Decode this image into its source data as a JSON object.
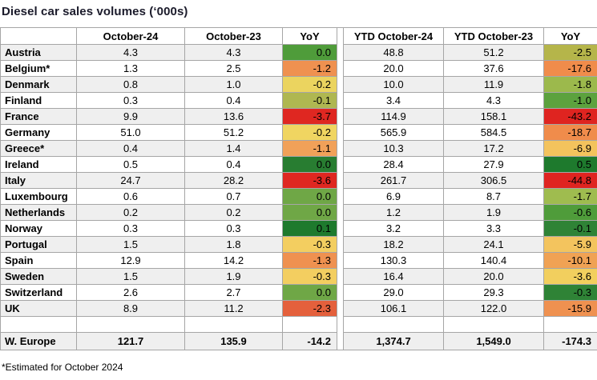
{
  "title": "Diesel car sales volumes (‘000s)",
  "footnote": "*Estimated for October 2024",
  "colors": {
    "border": "#a6a6a6",
    "stripe": "#efefef",
    "title_text": "#1b1b2b"
  },
  "table": {
    "headers": [
      "",
      "October-24",
      "October-23",
      "YoY",
      "YTD October-24",
      "YTD October-23",
      "YoY"
    ],
    "rows": [
      {
        "country": "Austria",
        "oct24": "4.3",
        "oct23": "4.3",
        "yoy": "0.0",
        "yoy_bg": "#4f9c3a",
        "ytd24": "48.8",
        "ytd23": "51.2",
        "ytd_yoy": "-2.5",
        "ytd_yoy_bg": "#b5b54a"
      },
      {
        "country": "Belgium*",
        "oct24": "1.3",
        "oct23": "2.5",
        "yoy": "-1.2",
        "yoy_bg": "#ef9150",
        "ytd24": "20.0",
        "ytd23": "37.6",
        "ytd_yoy": "-17.6",
        "ytd_yoy_bg": "#f08c4b"
      },
      {
        "country": "Denmark",
        "oct24": "0.8",
        "oct23": "1.0",
        "yoy": "-0.2",
        "yoy_bg": "#ebd45f",
        "ytd24": "10.0",
        "ytd23": "11.9",
        "ytd_yoy": "-1.8",
        "ytd_yoy_bg": "#9cb94c"
      },
      {
        "country": "Finland",
        "oct24": "0.3",
        "oct23": "0.4",
        "yoy": "-0.1",
        "yoy_bg": "#afb751",
        "ytd24": "3.4",
        "ytd23": "4.3",
        "ytd_yoy": "-1.0",
        "ytd_yoy_bg": "#5ca23e"
      },
      {
        "country": "France",
        "oct24": "9.9",
        "oct23": "13.6",
        "yoy": "-3.7",
        "yoy_bg": "#df2721",
        "ytd24": "114.9",
        "ytd23": "158.1",
        "ytd_yoy": "-43.2",
        "ytd_yoy_bg": "#df2420"
      },
      {
        "country": "Germany",
        "oct24": "51.0",
        "oct23": "51.2",
        "yoy": "-0.2",
        "yoy_bg": "#f0d561",
        "ytd24": "565.9",
        "ytd23": "584.5",
        "ytd_yoy": "-18.7",
        "ytd_yoy_bg": "#f08c4b"
      },
      {
        "country": "Greece*",
        "oct24": "0.4",
        "oct23": "1.4",
        "yoy": "-1.1",
        "yoy_bg": "#f1a159",
        "ytd24": "10.3",
        "ytd23": "17.2",
        "ytd_yoy": "-6.9",
        "ytd_yoy_bg": "#f3c35d"
      },
      {
        "country": "Ireland",
        "oct24": "0.5",
        "oct23": "0.4",
        "yoy": "0.0",
        "yoy_bg": "#287d31",
        "ytd24": "28.4",
        "ytd23": "27.9",
        "ytd_yoy": "0.5",
        "ytd_yoy_bg": "#1e7a2d"
      },
      {
        "country": "Italy",
        "oct24": "24.7",
        "oct23": "28.2",
        "yoy": "-3.6",
        "yoy_bg": "#df2721",
        "ytd24": "261.7",
        "ytd23": "306.5",
        "ytd_yoy": "-44.8",
        "ytd_yoy_bg": "#df2420"
      },
      {
        "country": "Luxembourg",
        "oct24": "0.6",
        "oct23": "0.7",
        "yoy": "0.0",
        "yoy_bg": "#6fa746",
        "ytd24": "6.9",
        "ytd23": "8.7",
        "ytd_yoy": "-1.7",
        "ytd_yoy_bg": "#9fbc4f"
      },
      {
        "country": "Netherlands",
        "oct24": "0.2",
        "oct23": "0.2",
        "yoy": "0.0",
        "yoy_bg": "#6fa746",
        "ytd24": "1.2",
        "ytd23": "1.9",
        "ytd_yoy": "-0.6",
        "ytd_yoy_bg": "#4f9c3a"
      },
      {
        "country": "Norway",
        "oct24": "0.3",
        "oct23": "0.3",
        "yoy": "0.1",
        "yoy_bg": "#1e7a2d",
        "ytd24": "3.2",
        "ytd23": "3.3",
        "ytd_yoy": "-0.1",
        "ytd_yoy_bg": "#2f8336"
      },
      {
        "country": "Portugal",
        "oct24": "1.5",
        "oct23": "1.8",
        "yoy": "-0.3",
        "yoy_bg": "#f3ce60",
        "ytd24": "18.2",
        "ytd23": "24.1",
        "ytd_yoy": "-5.9",
        "ytd_yoy_bg": "#f3c45e"
      },
      {
        "country": "Spain",
        "oct24": "12.9",
        "oct23": "14.2",
        "yoy": "-1.3",
        "yoy_bg": "#ef9150",
        "ytd24": "130.3",
        "ytd23": "140.4",
        "ytd_yoy": "-10.1",
        "ytd_yoy_bg": "#f0a254"
      },
      {
        "country": "Sweden",
        "oct24": "1.5",
        "oct23": "1.9",
        "yoy": "-0.3",
        "yoy_bg": "#f3ce60",
        "ytd24": "16.4",
        "ytd23": "20.0",
        "ytd_yoy": "-3.6",
        "ytd_yoy_bg": "#f2cf5e"
      },
      {
        "country": "Switzerland",
        "oct24": "2.6",
        "oct23": "2.7",
        "yoy": "0.0",
        "yoy_bg": "#6fa746",
        "ytd24": "29.0",
        "ytd23": "29.3",
        "ytd_yoy": "-0.3",
        "ytd_yoy_bg": "#2f8336"
      },
      {
        "country": "UK",
        "oct24": "8.9",
        "oct23": "11.2",
        "yoy": "-2.3",
        "yoy_bg": "#e4603c",
        "ytd24": "106.1",
        "ytd23": "122.0",
        "ytd_yoy": "-15.9",
        "ytd_yoy_bg": "#ef9150"
      }
    ],
    "total": {
      "country": "W. Europe",
      "oct24": "121.7",
      "oct23": "135.9",
      "yoy": "-14.2",
      "ytd24": "1,374.7",
      "ytd23": "1,549.0",
      "ytd_yoy": "-174.3"
    }
  },
  "chart_data": {
    "type": "table",
    "title": "Diesel car sales volumes ('000s)",
    "columns": [
      "October-24",
      "October-23",
      "YoY",
      "YTD October-24",
      "YTD October-23",
      "YoY"
    ],
    "categories": [
      "Austria",
      "Belgium*",
      "Denmark",
      "Finland",
      "France",
      "Germany",
      "Greece*",
      "Ireland",
      "Italy",
      "Luxembourg",
      "Netherlands",
      "Norway",
      "Portugal",
      "Spain",
      "Sweden",
      "Switzerland",
      "UK",
      "W. Europe"
    ],
    "series": [
      {
        "name": "October-24",
        "values": [
          4.3,
          1.3,
          0.8,
          0.3,
          9.9,
          51.0,
          0.4,
          0.5,
          24.7,
          0.6,
          0.2,
          0.3,
          1.5,
          12.9,
          1.5,
          2.6,
          8.9,
          121.7
        ]
      },
      {
        "name": "October-23",
        "values": [
          4.3,
          2.5,
          1.0,
          0.4,
          13.6,
          51.2,
          1.4,
          0.4,
          28.2,
          0.7,
          0.2,
          0.3,
          1.8,
          14.2,
          1.9,
          2.7,
          11.2,
          135.9
        ]
      },
      {
        "name": "YoY",
        "values": [
          0.0,
          -1.2,
          -0.2,
          -0.1,
          -3.7,
          -0.2,
          -1.1,
          0.0,
          -3.6,
          0.0,
          0.0,
          0.1,
          -0.3,
          -1.3,
          -0.3,
          0.0,
          -2.3,
          -14.2
        ]
      },
      {
        "name": "YTD October-24",
        "values": [
          48.8,
          20.0,
          10.0,
          3.4,
          114.9,
          565.9,
          10.3,
          28.4,
          261.7,
          6.9,
          1.2,
          3.2,
          18.2,
          130.3,
          16.4,
          29.0,
          106.1,
          1374.7
        ]
      },
      {
        "name": "YTD October-23",
        "values": [
          51.2,
          37.6,
          11.9,
          4.3,
          158.1,
          584.5,
          17.2,
          27.9,
          306.5,
          8.7,
          1.9,
          3.3,
          24.1,
          140.4,
          20.0,
          29.3,
          122.0,
          1549.0
        ]
      },
      {
        "name": "YTD YoY",
        "values": [
          -2.5,
          -17.6,
          -1.8,
          -1.0,
          -43.2,
          -18.7,
          -6.9,
          0.5,
          -44.8,
          -1.7,
          -0.6,
          -0.1,
          -5.9,
          -10.1,
          -3.6,
          -0.3,
          -15.9,
          -174.3
        ]
      }
    ],
    "footnote": "*Estimated for October 2024",
    "layout_hints": {
      "conditional_format": "red-yellow-green scale on YoY columns",
      "striped_rows": true
    }
  }
}
